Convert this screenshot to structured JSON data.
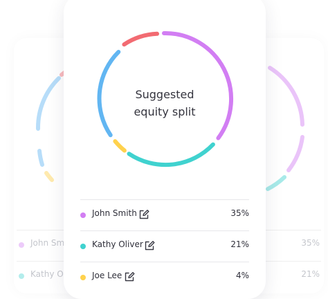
{
  "title_line1": "Suggested",
  "title_line2": "equity split",
  "colors": {
    "purple": "#d27ef3",
    "teal": "#40d2cf",
    "yellow": "#ffd24d",
    "blue": "#62b6f2",
    "red": "#f26b72"
  },
  "members": [
    {
      "name": "John Smith",
      "percent": "35%",
      "color": "#d27ef3",
      "icon": "edit-icon"
    },
    {
      "name": "Kathy Oliver",
      "percent": "21%",
      "color": "#40d2cf",
      "icon": "edit-icon"
    },
    {
      "name": "Joe Lee",
      "percent": "4%",
      "color": "#ffd24d",
      "icon": "edit-icon"
    }
  ],
  "background": {
    "rows": [
      {
        "name": "John Smit",
        "percent": "35%",
        "color": "#d27ef3"
      },
      {
        "name": "Kathy Oli",
        "percent": "21%",
        "color": "#40d2cf"
      }
    ]
  }
}
